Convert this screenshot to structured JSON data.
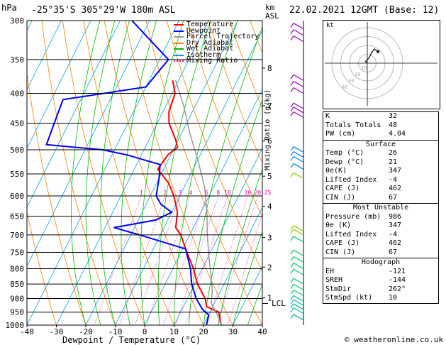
{
  "header": {
    "location": "-25°35'S  305°29'W  180m  ASL",
    "datetime": "22.02.2021  12GMT  (Base: 12)",
    "pressure_unit": "hPa",
    "height_unit_line1": "km",
    "height_unit_line2": "ASL",
    "mixing_ratio_label": "Mixing Ratio (g/kg)",
    "lcl_label": "LCL",
    "footer": "© weatheronline.co.uk",
    "hodo_label": "kt"
  },
  "legend": [
    {
      "label": "Temperature",
      "color": "#ff0000"
    },
    {
      "label": "Dewpoint",
      "color": "#0000ff"
    },
    {
      "label": "Parcel Trajectory",
      "color": "#999999"
    },
    {
      "label": "Dry Adiabat",
      "color": "#ff8000"
    },
    {
      "label": "Wet Adiabat",
      "color": "#00bb00"
    },
    {
      "label": "Isotherm",
      "color": "#00a0e0"
    },
    {
      "label": "Mixing Ratio",
      "color": "#ff00aa"
    }
  ],
  "chart_data": {
    "type": "line",
    "xlabel": "Dewpoint / Temperature (°C)",
    "ylabel": "hPa",
    "x_ticks": [
      -40,
      -30,
      -20,
      -10,
      0,
      10,
      20,
      30,
      40
    ],
    "xlim": [
      -40,
      40
    ],
    "pressure_levels": [
      300,
      350,
      400,
      450,
      500,
      550,
      600,
      650,
      700,
      750,
      800,
      850,
      900,
      950,
      1000
    ],
    "ylim": [
      300,
      1000
    ],
    "y_scale": "log",
    "km_ticks": [
      {
        "label": "8",
        "p": 362
      },
      {
        "label": "7",
        "p": 420
      },
      {
        "label": "6",
        "p": 483
      },
      {
        "label": "5",
        "p": 555
      },
      {
        "label": "4",
        "p": 625
      },
      {
        "label": "3",
        "p": 707
      },
      {
        "label": "2",
        "p": 795
      },
      {
        "label": "1",
        "p": 898
      }
    ],
    "mixing_ratio_labels": [
      "1",
      "2",
      "3",
      "4",
      "6",
      "8",
      "10",
      "16",
      "20",
      "25"
    ],
    "mixing_ratio_values": [
      1,
      2,
      3,
      4,
      6,
      8,
      10,
      16,
      20,
      25
    ],
    "mixing_ratio_label_p": 600,
    "lcl_p": 918,
    "series": [
      {
        "name": "Temperature",
        "color": "#ff0000",
        "points": [
          [
            380,
            -32
          ],
          [
            400,
            -29
          ],
          [
            430,
            -28
          ],
          [
            450,
            -26
          ],
          [
            480,
            -21
          ],
          [
            495,
            -19
          ],
          [
            510,
            -21
          ],
          [
            540,
            -22
          ],
          [
            570,
            -16
          ],
          [
            600,
            -12
          ],
          [
            640,
            -8
          ],
          [
            680,
            -6
          ],
          [
            700,
            -3
          ],
          [
            740,
            1
          ],
          [
            800,
            7
          ],
          [
            850,
            11
          ],
          [
            900,
            16
          ],
          [
            930,
            18
          ],
          [
            950,
            23
          ],
          [
            1000,
            26
          ]
        ]
      },
      {
        "name": "Dewpoint",
        "color": "#0000ff",
        "points": [
          [
            300,
            -56
          ],
          [
            350,
            -37
          ],
          [
            390,
            -40
          ],
          [
            410,
            -66
          ],
          [
            450,
            -65
          ],
          [
            490,
            -64
          ],
          [
            500,
            -44
          ],
          [
            510,
            -35
          ],
          [
            530,
            -22
          ],
          [
            560,
            -20
          ],
          [
            600,
            -18
          ],
          [
            620,
            -15
          ],
          [
            640,
            -10
          ],
          [
            660,
            -14
          ],
          [
            680,
            -27
          ],
          [
            700,
            -17
          ],
          [
            740,
            1
          ],
          [
            800,
            6
          ],
          [
            850,
            9
          ],
          [
            900,
            13
          ],
          [
            940,
            17
          ],
          [
            960,
            20
          ],
          [
            1000,
            21
          ]
        ]
      },
      {
        "name": "Parcel Trajectory",
        "color": "#999999",
        "points": [
          [
            380,
            -31
          ],
          [
            420,
            -24
          ],
          [
            470,
            -17
          ],
          [
            520,
            -10
          ],
          [
            580,
            -3
          ],
          [
            640,
            2
          ],
          [
            700,
            6
          ],
          [
            760,
            10
          ],
          [
            820,
            14
          ],
          [
            870,
            17
          ],
          [
            918,
            19
          ],
          [
            960,
            23
          ],
          [
            1000,
            26
          ]
        ]
      }
    ]
  },
  "wind_barbs_p": [
    310,
    318,
    326,
    380,
    390,
    400,
    425,
    432,
    440,
    505,
    515,
    525,
    540,
    560,
    690,
    700,
    720,
    760,
    780,
    800,
    820,
    850,
    870,
    890,
    910,
    925,
    940,
    955,
    980
  ],
  "hodograph": {
    "rings": [
      10,
      20,
      30,
      40
    ],
    "ring_labels": [
      "10",
      "20",
      "30",
      "40"
    ],
    "units": "kt",
    "trace": [
      [
        0,
        0
      ],
      [
        -2,
        2
      ],
      [
        1,
        5
      ],
      [
        3,
        8
      ],
      [
        5,
        12
      ],
      [
        8,
        16
      ],
      [
        12,
        13
      ]
    ]
  },
  "stats": {
    "top": [
      {
        "label": "K",
        "value": "32"
      },
      {
        "label": "Totals Totals",
        "value": "48"
      },
      {
        "label": "PW (cm)",
        "value": "4.04"
      }
    ],
    "surface_title": "Surface",
    "surface": [
      {
        "label": "Temp (°C)",
        "value": "26"
      },
      {
        "label": "Dewp (°C)",
        "value": "21"
      },
      {
        "label": "θe(K)",
        "value": "347"
      },
      {
        "label": "Lifted Index",
        "value": "-4"
      },
      {
        "label": "CAPE (J)",
        "value": "462"
      },
      {
        "label": "CIN (J)",
        "value": "67"
      }
    ],
    "unstable_title": "Most Unstable",
    "unstable": [
      {
        "label": "Pressure (mb)",
        "value": "986"
      },
      {
        "label": "θe (K)",
        "value": "347"
      },
      {
        "label": "Lifted Index",
        "value": "-4"
      },
      {
        "label": "CAPE (J)",
        "value": "462"
      },
      {
        "label": "CIN (J)",
        "value": "67"
      }
    ],
    "hodo_title": "Hodograph",
    "hodo": [
      {
        "label": "EH",
        "value": "-121"
      },
      {
        "label": "SREH",
        "value": "-144"
      },
      {
        "label": "StmDir",
        "value": "262°"
      },
      {
        "label": "StmSpd (kt)",
        "value": "10"
      }
    ]
  }
}
